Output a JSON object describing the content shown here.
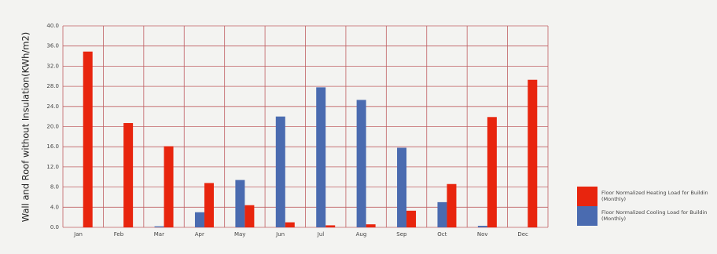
{
  "chart_data": {
    "type": "bar",
    "title": "",
    "xlabel": "",
    "ylabel": "Wall and Roof without Insulation(KWh/m2)",
    "ylim": [
      0,
      40
    ],
    "y_ticks": [
      "0.0",
      "4.0",
      "8.0",
      "12.0",
      "16.0",
      "20.0",
      "24.0",
      "28.0",
      "32.0",
      "36.0",
      "40.0"
    ],
    "grid": true,
    "legend_position": "right",
    "categories": [
      "Jan",
      "Feb",
      "Mar",
      "Apr",
      "May",
      "Jun",
      "Jul",
      "Aug",
      "Sep",
      "Oct",
      "Nov",
      "Dec"
    ],
    "series": [
      {
        "name": "Floor Normalized Cooling Load for Building (Monthly)",
        "legend_line1": "Floor Normalized Cooling Load for Buildin",
        "legend_line2": "(Monthly)",
        "color": "#4a6bb0",
        "values": [
          0,
          0,
          0.2,
          3.0,
          9.4,
          22.0,
          27.8,
          25.3,
          15.8,
          5.0,
          0.3,
          0
        ]
      },
      {
        "name": "Floor Normalized Heating Load for Building (Monthly)",
        "legend_line1": "Floor Normalized Heating Load for Buildin",
        "legend_line2": "(Monthly)",
        "color": "#e8250e",
        "values": [
          34.9,
          20.7,
          16.1,
          8.8,
          4.4,
          1.0,
          0.4,
          0.6,
          3.3,
          8.6,
          21.9,
          29.3
        ]
      }
    ],
    "colors": {
      "grid": "#c06064",
      "frame": "#c06064",
      "plot_background": "#f3f3f1"
    }
  }
}
